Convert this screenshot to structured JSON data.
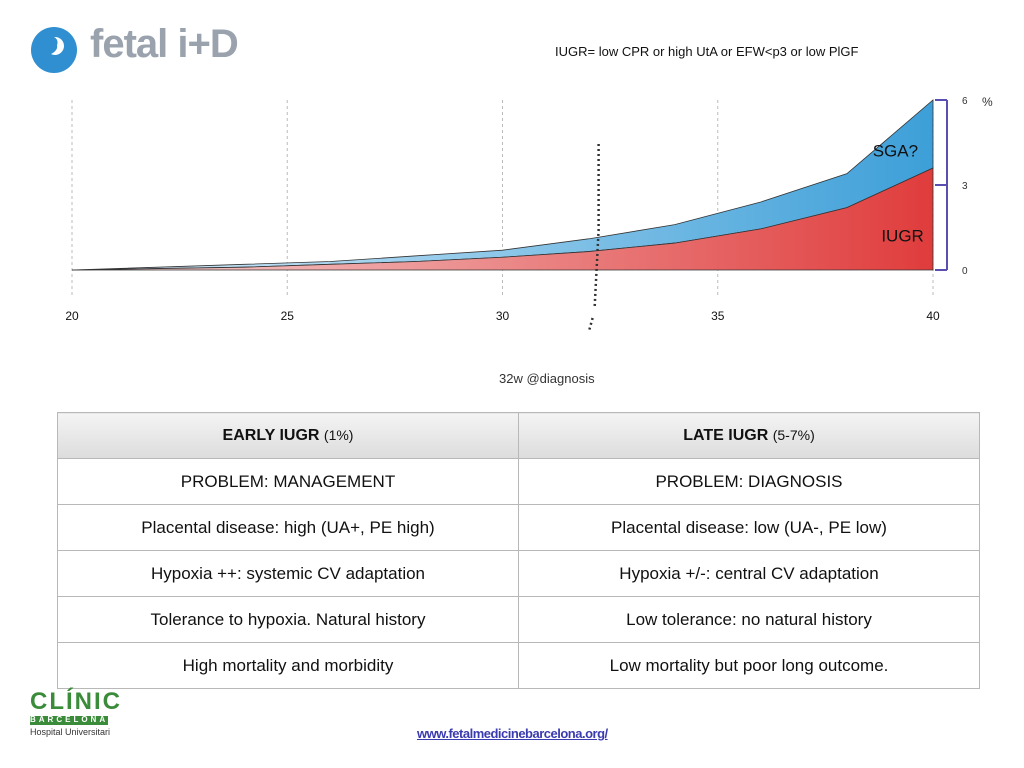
{
  "header": {
    "logo_text": "fetal i+D",
    "definition": "IUGR= low CPR or high UtA or EFW<p3 or low PlGF"
  },
  "chart_data": {
    "type": "area",
    "x": [
      20,
      22,
      24,
      26,
      28,
      30,
      32,
      34,
      36,
      38,
      40
    ],
    "x_ticks": [
      "20",
      "25",
      "30",
      "35",
      "40"
    ],
    "xlim": [
      20,
      40
    ],
    "y_ticks": [
      "0",
      "3",
      "6"
    ],
    "ylim": [
      0,
      6
    ],
    "unit_label": "%",
    "series": [
      {
        "name": "SGA?",
        "color": "#3d9fd8",
        "values": [
          0,
          0.1,
          0.2,
          0.3,
          0.5,
          0.7,
          1.1,
          1.6,
          2.4,
          3.4,
          6.0
        ]
      },
      {
        "name": "IUGR",
        "color": "#e03c3c",
        "values": [
          0,
          0.05,
          0.1,
          0.2,
          0.3,
          0.45,
          0.65,
          0.95,
          1.45,
          2.2,
          3.6
        ]
      }
    ],
    "annotation": "32w  @diagnosis",
    "annotation_x": 32
  },
  "table": {
    "columns": [
      {
        "title": "EARLY IUGR",
        "sub": "(1%)"
      },
      {
        "title": "LATE IUGR",
        "sub": "(5-7%)"
      }
    ],
    "rows": [
      [
        "PROBLEM: MANAGEMENT",
        "PROBLEM: DIAGNOSIS"
      ],
      [
        "Placental disease: high (UA+, PE high)",
        "Placental disease: low (UA-, PE low)"
      ],
      [
        "Hypoxia ++: systemic CV adaptation",
        "Hypoxia +/-: central CV adaptation"
      ],
      [
        "Tolerance to hypoxia. Natural history",
        "Low tolerance: no natural history"
      ],
      [
        "High mortality and morbidity",
        "Low mortality but poor long outcome."
      ]
    ]
  },
  "footer": {
    "clinic_name": "CLÍNIC",
    "clinic_city": "BARCELONA",
    "clinic_sub": "Hospital Universitari",
    "url": "www.fetalmedicinebarcelona.org/"
  },
  "colors": {
    "blue": "#3d9fd8",
    "red": "#e03c3c",
    "axis": "#5a4fb0",
    "clinic_green": "#3b8c3a"
  }
}
